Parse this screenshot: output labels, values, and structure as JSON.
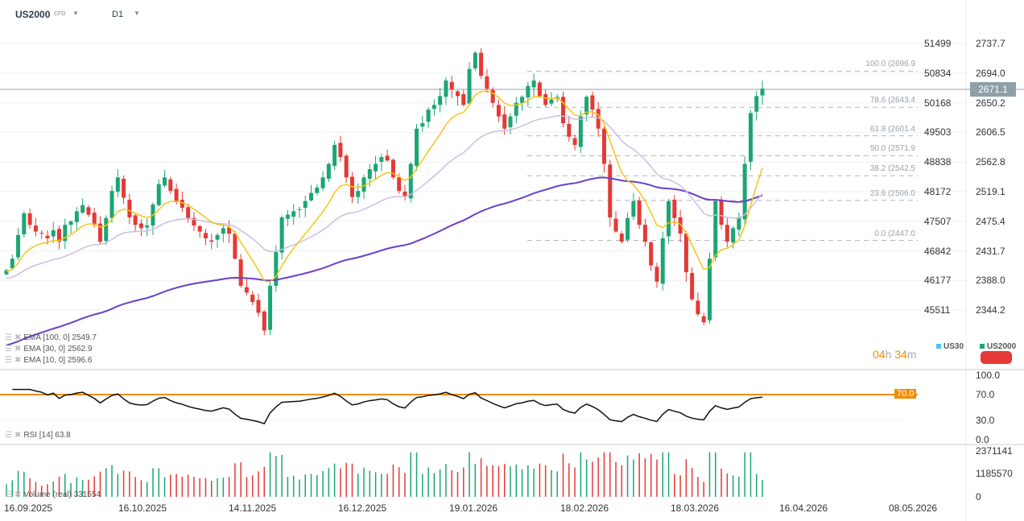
{
  "header": {
    "symbol": "US2000",
    "symbol_type": "CFD",
    "timeframe": "D1"
  },
  "colors": {
    "up": "#1aa672",
    "down": "#e53935",
    "ema10": "#f5c518",
    "ema30": "#cbbde8",
    "ema100": "#6a3fc9",
    "rsi_level": "#f28c00",
    "us30": "#4fc3f7",
    "current_price_bg": "#8fa0a8"
  },
  "chart_data": {
    "type": "candlestick",
    "x_tick_labels": [
      "16.09.2025",
      "16.10.2025",
      "14.11.2025",
      "16.12.2025",
      "19.01.2026",
      "18.02.2026",
      "18.03.2026",
      "16.04.2026",
      "08.05.2026"
    ],
    "y_right_ticks": [
      "2737.7",
      "2694.0",
      "2650.2",
      "2606.5",
      "2562.8",
      "2519.1",
      "2475.4",
      "2431.7",
      "2388.0",
      "2344.2"
    ],
    "y_left_ticks": [
      "51499",
      "50834",
      "50168",
      "49503",
      "48838",
      "48172",
      "47507",
      "46842",
      "46177",
      "45511"
    ],
    "ylim": [
      2344.2,
      2737.7
    ],
    "close": [
      2403,
      2420,
      2455,
      2487,
      2470,
      2460,
      2457,
      2450,
      2462,
      2445,
      2470,
      2475,
      2490,
      2499,
      2485,
      2470,
      2445,
      2480,
      2520,
      2540,
      2510,
      2481,
      2470,
      2465,
      2469,
      2500,
      2530,
      2540,
      2520,
      2505,
      2495,
      2480,
      2469,
      2460,
      2450,
      2445,
      2455,
      2465,
      2457,
      2420,
      2380,
      2370,
      2356,
      2340,
      2314,
      2380,
      2430,
      2481,
      2485,
      2490,
      2493,
      2505,
      2517,
      2525,
      2540,
      2560,
      2588,
      2570,
      2540,
      2511,
      2520,
      2540,
      2552,
      2560,
      2570,
      2565,
      2540,
      2520,
      2511,
      2560,
      2612,
      2620,
      2640,
      2647,
      2660,
      2683,
      2670,
      2660,
      2647,
      2700,
      2724,
      2690,
      2671,
      2650,
      2630,
      2612,
      2630,
      2650,
      2659,
      2675,
      2683,
      2660,
      2647,
      2655,
      2659,
      2620,
      2600,
      2588,
      2630,
      2659,
      2640,
      2612,
      2560,
      2481,
      2460,
      2445,
      2480,
      2505,
      2470,
      2445,
      2410,
      2386,
      2450,
      2505,
      2480,
      2457,
      2400,
      2360,
      2338,
      2326,
      2420,
      2505,
      2470,
      2445,
      2465,
      2481,
      2560,
      2635,
      2660,
      2671
    ],
    "current_price": "2671.1",
    "fibonacci": [
      {
        "label": "100.0 (2696.9",
        "price": 2696.9
      },
      {
        "label": "78.6 (2643.4",
        "price": 2643.4
      },
      {
        "label": "61.8 (2601.4",
        "price": 2601.4
      },
      {
        "label": "50.0 (2571.9",
        "price": 2571.9
      },
      {
        "label": "38.2 (2542.5",
        "price": 2542.5
      },
      {
        "label": "23.6 (2506.0",
        "price": 2506.0
      },
      {
        "label": "0.0 (2447.0",
        "price": 2447.0
      }
    ],
    "indicators": [
      "EMA [100, 0] 2549.7",
      "EMA [30, 0] 2562.9",
      "EMA [10, 0] 2596.6"
    ],
    "rsi": {
      "label": "RSI [14] 63.8",
      "ticks": [
        "100.0",
        "70.0",
        "30.0",
        "0.0"
      ],
      "level": "70.0"
    },
    "volume": {
      "label": "Volume (real) 331554",
      "ticks": [
        "2371141",
        "1185570",
        "0"
      ]
    }
  },
  "legend": {
    "items": [
      "US30",
      "US2000"
    ]
  },
  "timer": {
    "h": "04",
    "h_unit": "h",
    "m": "34",
    "m_unit": "m"
  }
}
